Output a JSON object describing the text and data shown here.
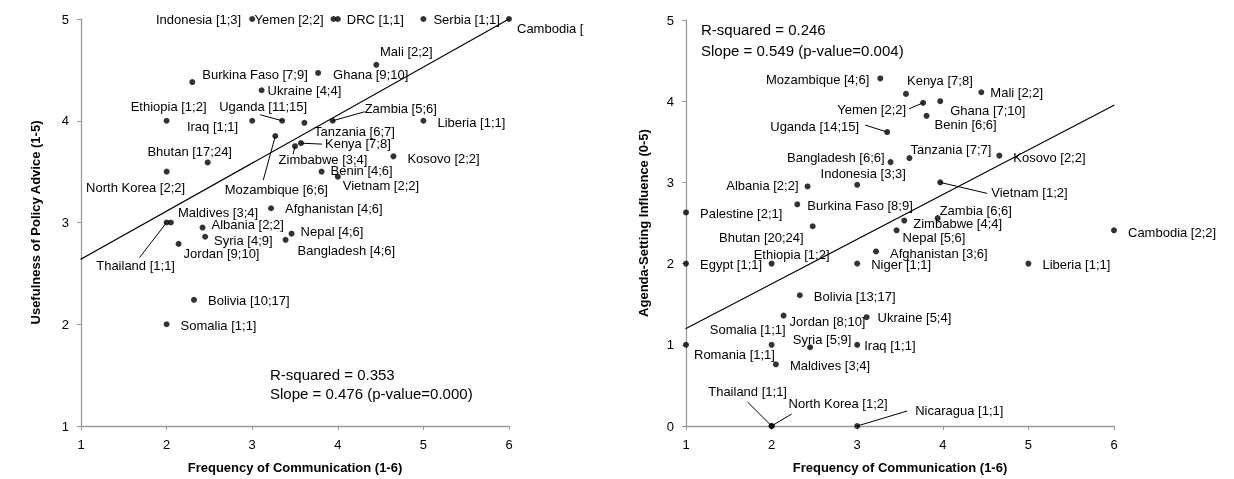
{
  "chart_data": [
    {
      "type": "scatter",
      "xlabel": "Frequency of Communication (1-6)",
      "ylabel": "Usefulness of Policy Advice (1-5)",
      "xlim": [
        1,
        6
      ],
      "xticks": [
        1,
        2,
        3,
        4,
        5,
        6
      ],
      "ylim": [
        1,
        5
      ],
      "yticks": [
        1,
        2,
        3,
        4,
        5
      ],
      "grid": false,
      "marker": "circle",
      "series": [
        {
          "color": "#000000",
          "x": [
            3.0,
            3.95,
            4.0,
            5.0,
            6.0,
            4.45,
            2.3,
            3.77,
            3.11,
            2.0,
            3.0,
            3.35,
            3.61,
            3.94,
            5.0,
            3.27,
            3.57,
            3.5,
            4.65,
            2.48,
            2.0,
            3.81,
            4.0,
            3.22,
            2.05,
            2.0,
            2.42,
            3.46,
            2.45,
            3.39,
            2.14,
            2.32,
            2.0
          ],
          "values": [
            5,
            5,
            5,
            5,
            5,
            4.55,
            4.38,
            4.47,
            4.3,
            4.0,
            4.0,
            4.0,
            3.98,
            4.0,
            4.0,
            3.85,
            3.78,
            3.75,
            3.65,
            3.59,
            3.5,
            3.5,
            3.45,
            3.14,
            3.0,
            3.0,
            2.95,
            2.89,
            2.86,
            2.83,
            2.79,
            2.24,
            2.0
          ]
        },
        {
          "type": "line",
          "color": "#000000",
          "marker": "none",
          "line_style": "solid",
          "x": [
            1,
            6
          ],
          "values": [
            2.64,
            5.0
          ]
        }
      ],
      "annotations": [
        {
          "text": "Indonesia [1;3]",
          "x": 3.0,
          "y": 5
        },
        {
          "text": "Yemen [2;2]",
          "x": 3.95,
          "y": 5
        },
        {
          "text": "DRC [1;1]",
          "x": 4.0,
          "y": 5
        },
        {
          "text": "Serbia [1;1]",
          "x": 5.0,
          "y": 5
        },
        {
          "text": "Cambodia [",
          "x": 6.0,
          "y": 5
        },
        {
          "text": "Mali [2;2]",
          "x": 4.45,
          "y": 4.55
        },
        {
          "text": "Burkina Faso [7;9]",
          "x": 2.3,
          "y": 4.38
        },
        {
          "text": "Ghana [9;10]",
          "x": 3.77,
          "y": 4.47
        },
        {
          "text": "Ukraine [4;4]",
          "x": 3.11,
          "y": 4.3
        },
        {
          "text": "Ethiopia [1;2]",
          "x": 2.0,
          "y": 4.0
        },
        {
          "text": "Iraq [1;1]",
          "x": 3.0,
          "y": 4.0
        },
        {
          "text": "Uganda [11;15]",
          "x": 3.35,
          "y": 4.0
        },
        {
          "text": "Tanzania [6;7]",
          "x": 3.61,
          "y": 3.98
        },
        {
          "text": "Zambia [5;6]",
          "x": 3.94,
          "y": 4.0
        },
        {
          "text": "Liberia [1;1]",
          "x": 5.0,
          "y": 4.0
        },
        {
          "text": "Mozambique [6;6]",
          "x": 3.27,
          "y": 3.85
        },
        {
          "text": "Kenya [7;8]",
          "x": 3.57,
          "y": 3.78
        },
        {
          "text": "Zimbabwe [3;4]",
          "x": 3.5,
          "y": 3.75
        },
        {
          "text": "Kosovo [2;2]",
          "x": 4.65,
          "y": 3.65
        },
        {
          "text": "Bhutan [17;24]",
          "x": 2.48,
          "y": 3.59
        },
        {
          "text": "North Korea [2;2]",
          "x": 2.0,
          "y": 3.5
        },
        {
          "text": "Benin [4;6]",
          "x": 3.81,
          "y": 3.5
        },
        {
          "text": "Vietnam [2;2]",
          "x": 4.0,
          "y": 3.45
        },
        {
          "text": "Afghanistan [4;6]",
          "x": 3.22,
          "y": 3.14
        },
        {
          "text": "Maldives [3;4]",
          "x": 2.05,
          "y": 3.0
        },
        {
          "text": "Thailand [1;1]",
          "x": 2.0,
          "y": 3.0
        },
        {
          "text": "Albania [2;2]",
          "x": 2.42,
          "y": 2.95
        },
        {
          "text": "Nepal [4;6]",
          "x": 3.46,
          "y": 2.89
        },
        {
          "text": "Syria [4;9]",
          "x": 2.45,
          "y": 2.86
        },
        {
          "text": "Bangladesh [4;6]",
          "x": 3.39,
          "y": 2.83
        },
        {
          "text": "Jordan [9;10]",
          "x": 2.14,
          "y": 2.79
        },
        {
          "text": "Bolivia [10;17]",
          "x": 2.32,
          "y": 2.24
        },
        {
          "text": "Somalia [1;1]",
          "x": 2.0,
          "y": 2.0
        },
        "R-squared = 0.353",
        "Slope = 0.476 (p-value=0.000)"
      ]
    },
    {
      "type": "scatter",
      "xlabel": "Frequency of Communication (1-6)",
      "ylabel": "Agenda-Setting Influence (0-5)",
      "xlim": [
        1,
        6
      ],
      "xticks": [
        1,
        2,
        3,
        4,
        5,
        6
      ],
      "ylim": [
        0,
        5
      ],
      "yticks": [
        0,
        1,
        2,
        3,
        4,
        5
      ],
      "grid": false,
      "marker": "circle",
      "series": [
        {
          "color": "#000000",
          "x": [
            3.27,
            3.57,
            4.45,
            3.77,
            3.97,
            3.81,
            3.35,
            3.39,
            3.61,
            4.66,
            3.0,
            2.42,
            3.97,
            2.3,
            1.0,
            3.94,
            3.55,
            2.48,
            3.46,
            6.0,
            3.22,
            1.0,
            2.0,
            3.0,
            5.0,
            2.33,
            2.14,
            3.11,
            2.0,
            1.0,
            2.45,
            3.0,
            2.05,
            2.0,
            2.0,
            3.0
          ],
          "values": [
            4.28,
            4.09,
            4.11,
            3.98,
            4.0,
            3.82,
            3.62,
            3.25,
            3.3,
            3.33,
            2.97,
            2.95,
            3.0,
            2.73,
            2.63,
            2.56,
            2.53,
            2.46,
            2.41,
            2.41,
            2.15,
            2.0,
            2.0,
            2.0,
            2.0,
            1.61,
            1.36,
            1.34,
            1.0,
            1.0,
            0.97,
            1.0,
            0.76,
            0,
            0,
            0
          ]
        },
        {
          "type": "line",
          "color": "#000000",
          "marker": "none",
          "line_style": "solid",
          "x": [
            1,
            6
          ],
          "values": [
            1.2,
            3.95
          ]
        }
      ],
      "annotations": [
        {
          "text": "Mozambique [4;6]",
          "x": 3.27,
          "y": 4.28
        },
        {
          "text": "Kenya [7;8]",
          "x": 3.57,
          "y": 4.09
        },
        {
          "text": "Mali [2;2]",
          "x": 4.45,
          "y": 4.11
        },
        {
          "text": "Yemen [2;2]",
          "x": 3.77,
          "y": 3.98
        },
        {
          "text": "Ghana [7;10]",
          "x": 3.97,
          "y": 4.0
        },
        {
          "text": "Benin [6;6]",
          "x": 3.81,
          "y": 3.82
        },
        {
          "text": "Uganda [14;15]",
          "x": 3.35,
          "y": 3.62
        },
        {
          "text": "Bangladesh [6;6]",
          "x": 3.39,
          "y": 3.25
        },
        {
          "text": "Tanzania [7;7]",
          "x": 3.61,
          "y": 3.3
        },
        {
          "text": "Kosovo [2;2]",
          "x": 4.66,
          "y": 3.33
        },
        {
          "text": "Indonesia [3;3]",
          "x": 3.0,
          "y": 2.97
        },
        {
          "text": "Albania [2;2]",
          "x": 2.42,
          "y": 2.95
        },
        {
          "text": "Vietnam [1;2]",
          "x": 3.97,
          "y": 3.0
        },
        {
          "text": "Burkina Faso [8;9]",
          "x": 2.3,
          "y": 2.73
        },
        {
          "text": "Palestine [2;1]",
          "x": 1.0,
          "y": 2.63
        },
        {
          "text": "Zambia [6;6]",
          "x": 3.94,
          "y": 2.56
        },
        {
          "text": "Zimbabwe [4;4]",
          "x": 3.55,
          "y": 2.53
        },
        {
          "text": "Bhutan [20;24]",
          "x": 2.48,
          "y": 2.46
        },
        {
          "text": "Nepal [5;6]",
          "x": 3.46,
          "y": 2.41
        },
        {
          "text": "Cambodia [2;2]",
          "x": 6.0,
          "y": 2.41
        },
        {
          "text": "Afghanistan [3;6]",
          "x": 3.22,
          "y": 2.15
        },
        {
          "text": "Egypt [1;1]",
          "x": 1.0,
          "y": 2.0
        },
        {
          "text": "Ethiopia [1;2]",
          "x": 2.0,
          "y": 2.0
        },
        {
          "text": "Niger [1;1]",
          "x": 3.0,
          "y": 2.0
        },
        {
          "text": "Liberia [1;1]",
          "x": 5.0,
          "y": 2.0
        },
        {
          "text": "Bolivia [13;17]",
          "x": 2.33,
          "y": 1.61
        },
        {
          "text": "Jordan [8;10]",
          "x": 2.14,
          "y": 1.36
        },
        {
          "text": "Ukraine [5;4]",
          "x": 3.11,
          "y": 1.34
        },
        {
          "text": "Somalia [1;1]",
          "x": 2.0,
          "y": 1.0
        },
        {
          "text": "Romania [1;1]",
          "x": 1.0,
          "y": 1.0
        },
        {
          "text": "Syria [5;9]",
          "x": 2.45,
          "y": 0.97
        },
        {
          "text": "Iraq [1;1]",
          "x": 3.0,
          "y": 1.0
        },
        {
          "text": "Maldives [3;4]",
          "x": 2.05,
          "y": 0.76
        },
        {
          "text": "Thailand [1;1]",
          "x": 2.0,
          "y": 0
        },
        {
          "text": "North Korea [1;2]",
          "x": 2.0,
          "y": 0
        },
        {
          "text": "Nicaragua [1;1]",
          "x": 3.0,
          "y": 0
        },
        "R-squared = 0.246",
        "Slope = 0.549 (p-value=0.004)"
      ]
    }
  ]
}
